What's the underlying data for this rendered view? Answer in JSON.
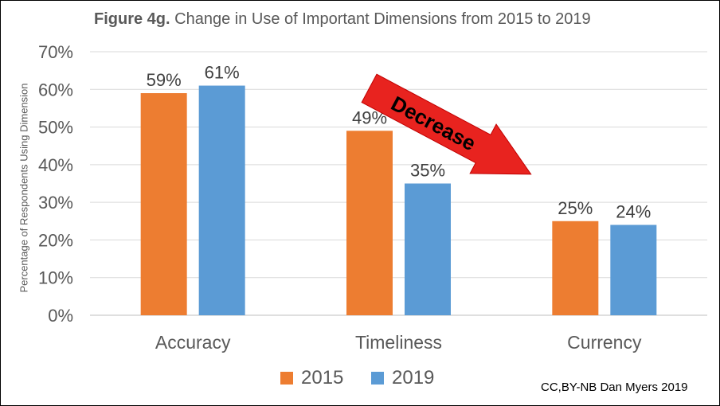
{
  "title_bold": "Figure 4g.",
  "title_rest": "Change in Use of Important Dimensions from 2015 to 2019",
  "credit": "CC,BY-NB Dan Myers 2019",
  "annotation": "Decrease",
  "colors": {
    "2015": "#ED7D31",
    "2019": "#5B9BD5",
    "arrow": "#E8231F",
    "grid": "#D9D9D9",
    "text": "#595959"
  },
  "chart_data": {
    "type": "bar",
    "title": "Figure 4g. Change in Use of Important Dimensions from 2015 to 2019",
    "xlabel": "",
    "ylabel": "Percentage of Respondents Using Dimension",
    "categories": [
      "Accuracy",
      "Timeliness",
      "Currency"
    ],
    "series": [
      {
        "name": "2015",
        "values": [
          59,
          49,
          25
        ],
        "labels": [
          "59%",
          "49%",
          "25%"
        ]
      },
      {
        "name": "2019",
        "values": [
          61,
          35,
          24
        ],
        "labels": [
          "61%",
          "35%",
          "24%"
        ]
      }
    ],
    "ylim": [
      0,
      70
    ],
    "yticks": [
      "0%",
      "10%",
      "20%",
      "30%",
      "40%",
      "50%",
      "60%",
      "70%"
    ],
    "grid": true,
    "legend": "bottom"
  }
}
